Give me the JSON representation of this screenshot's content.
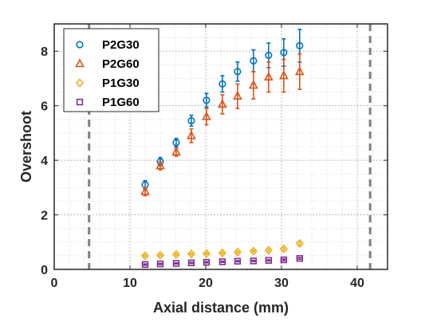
{
  "chart_data": {
    "type": "scatter",
    "xlabel": "Axial distance (mm)",
    "ylabel": "Overshoot",
    "xlim": [
      0,
      44
    ],
    "ylim": [
      0,
      9
    ],
    "xticks": [
      "0",
      "10",
      "20",
      "30",
      "40"
    ],
    "yticks": [
      "0",
      "2",
      "4",
      "6",
      "8"
    ],
    "grid": true,
    "minor_grid": true,
    "legend_position": "top-left",
    "vertical_reference_lines": [
      4.6,
      41.7
    ],
    "series": [
      {
        "name": "P2G30",
        "color": "#0072BD",
        "marker": "circle",
        "x": [
          12,
          14,
          16.1,
          18.1,
          20.1,
          22.2,
          24.2,
          26.3,
          28.3,
          30.3,
          32.4
        ],
        "y": [
          3.1,
          3.95,
          4.65,
          5.45,
          6.2,
          6.8,
          7.25,
          7.65,
          7.85,
          7.95,
          8.2
        ],
        "err": [
          0.15,
          0.15,
          0.15,
          0.2,
          0.25,
          0.3,
          0.35,
          0.4,
          0.45,
          0.5,
          0.6
        ]
      },
      {
        "name": "P2G60",
        "color": "#D95319",
        "marker": "triangle",
        "x": [
          12,
          14,
          16.1,
          18.1,
          20.1,
          22.2,
          24.2,
          26.3,
          28.3,
          30.3,
          32.4
        ],
        "y": [
          2.85,
          3.8,
          4.3,
          4.9,
          5.6,
          6.05,
          6.35,
          6.75,
          7.05,
          7.1,
          7.25
        ],
        "err": [
          0.15,
          0.15,
          0.15,
          0.25,
          0.3,
          0.35,
          0.45,
          0.5,
          0.55,
          0.6,
          0.65
        ]
      },
      {
        "name": "P1G30",
        "color": "#EDB120",
        "marker": "diamond",
        "x": [
          12,
          14,
          16.1,
          18.1,
          20.1,
          22.2,
          24.2,
          26.3,
          28.3,
          30.3,
          32.4
        ],
        "y": [
          0.5,
          0.52,
          0.55,
          0.57,
          0.58,
          0.6,
          0.63,
          0.67,
          0.7,
          0.75,
          0.95
        ],
        "err": [
          0.03,
          0.03,
          0.03,
          0.03,
          0.03,
          0.03,
          0.03,
          0.03,
          0.04,
          0.04,
          0.05
        ]
      },
      {
        "name": "P1G60",
        "color": "#7E2F8E",
        "marker": "square",
        "x": [
          12,
          14,
          16.1,
          18.1,
          20.1,
          22.2,
          24.2,
          26.3,
          28.3,
          30.3,
          32.4
        ],
        "y": [
          0.18,
          0.2,
          0.22,
          0.24,
          0.26,
          0.28,
          0.3,
          0.31,
          0.33,
          0.35,
          0.4
        ],
        "err": [
          0.02,
          0.02,
          0.02,
          0.02,
          0.02,
          0.02,
          0.02,
          0.02,
          0.02,
          0.03,
          0.03
        ]
      }
    ]
  }
}
